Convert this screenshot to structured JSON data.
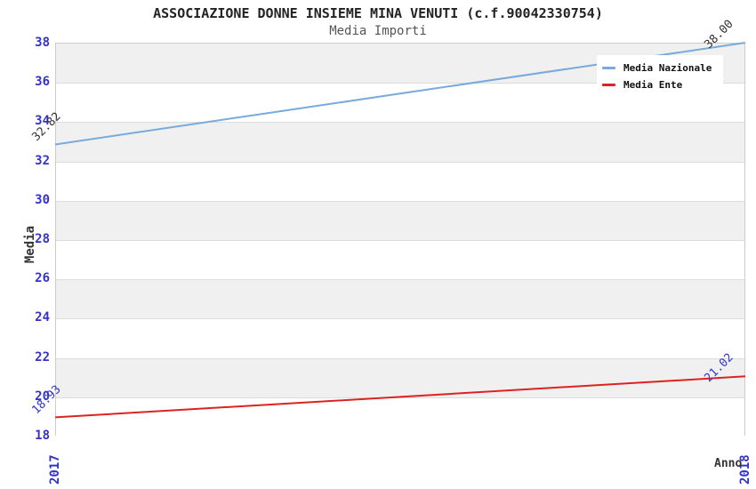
{
  "chart_data": {
    "type": "line",
    "title": "ASSOCIAZIONE DONNE INSIEME MINA VENUTI (c.f.90042330754)",
    "subtitle": "Media Importi",
    "xlabel": "Anno",
    "ylabel": "Media",
    "x_categories": [
      "2017",
      "2018"
    ],
    "ylim": [
      18,
      38
    ],
    "y_ticks": [
      18,
      20,
      22,
      24,
      26,
      28,
      30,
      32,
      34,
      36,
      38
    ],
    "grid": true,
    "legend_position": "top-right",
    "series": [
      {
        "name": "Media Nazionale",
        "values": [
          32.82,
          38.0
        ],
        "point_labels": [
          "32.82",
          "38.00"
        ],
        "line_color": "#78aadc",
        "label_color": "#333333"
      },
      {
        "name": "Media Ente",
        "values": [
          18.93,
          21.02
        ],
        "point_labels": [
          "18.93",
          "21.02"
        ],
        "line_color": "#dd2222",
        "label_color": "#3333cc"
      }
    ]
  },
  "colors": {
    "title": "#222222",
    "subtitle": "#555555",
    "tick_label": "#3333cc",
    "axis_label": "#333333",
    "grid_line": "#dcdcdc",
    "plot_border": "#cccccc",
    "band_light": "#ffffff",
    "band_dark": "#f0f0f0",
    "legend_background": "#ffffff",
    "legend_text": "#111111"
  }
}
